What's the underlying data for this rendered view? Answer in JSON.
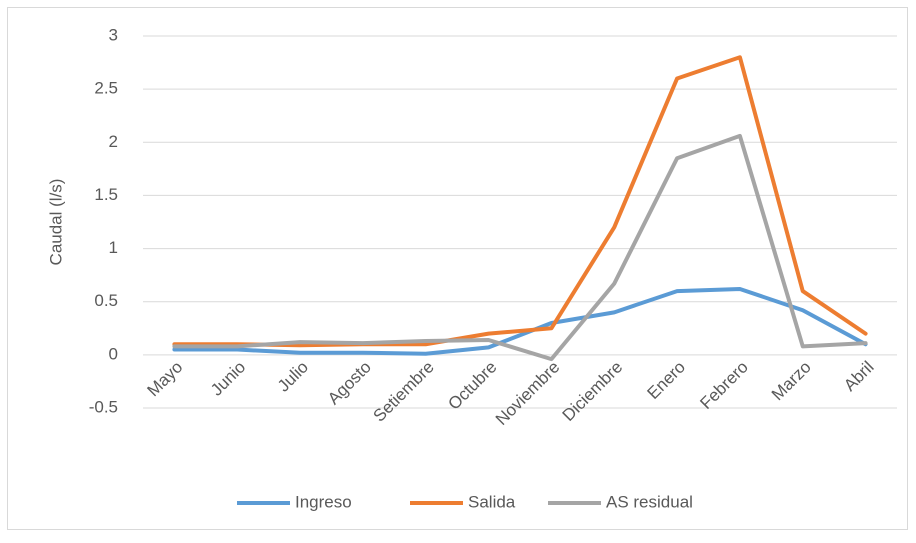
{
  "chart_data": {
    "type": "line",
    "y_label": "Caudal (l/s)",
    "categories": [
      "Mayo",
      "Junio",
      "Julio",
      "Agosto",
      "Setiembre",
      "Octubre",
      "Noviembre",
      "Diciembre",
      "Enero",
      "Febrero",
      "Marzo",
      "Abril"
    ],
    "series": [
      {
        "name": "Ingreso",
        "color": "#5b9bd5",
        "values": [
          0.05,
          0.05,
          0.02,
          0.02,
          0.01,
          0.07,
          0.3,
          0.4,
          0.6,
          0.62,
          0.42,
          0.1
        ]
      },
      {
        "name": "Salida",
        "color": "#ed7d31",
        "values": [
          0.1,
          0.1,
          0.09,
          0.1,
          0.1,
          0.2,
          0.25,
          1.2,
          2.6,
          2.8,
          0.6,
          0.2
        ]
      },
      {
        "name": "AS residual",
        "color": "#a5a5a5",
        "values": [
          0.08,
          0.08,
          0.12,
          0.11,
          0.13,
          0.14,
          -0.04,
          0.67,
          1.85,
          2.06,
          0.08,
          0.11
        ]
      }
    ],
    "ylim": [
      -0.5,
      3
    ],
    "yticks": [
      -0.5,
      0,
      0.5,
      1,
      1.5,
      2,
      2.5,
      3
    ],
    "grid": true,
    "legend": "bottom"
  }
}
